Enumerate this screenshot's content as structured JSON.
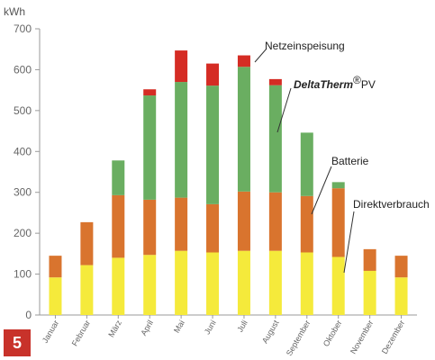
{
  "chart_data": {
    "type": "bar",
    "stacked": true,
    "unit_label": "kWh",
    "categories": [
      "Januar",
      "Februar",
      "März",
      "April",
      "Mai",
      "Juni",
      "Juli",
      "August",
      "September",
      "Oktober",
      "November",
      "Dezember"
    ],
    "series": [
      {
        "name": "Direktverbrauch",
        "color": "#f5ea3b",
        "values": [
          92,
          122,
          140,
          147,
          157,
          153,
          157,
          157,
          153,
          142,
          108,
          92
        ]
      },
      {
        "name": "Batterie",
        "color": "#d9742e",
        "values": [
          53,
          105,
          153,
          135,
          130,
          118,
          145,
          143,
          138,
          168,
          53,
          53
        ]
      },
      {
        "name": "DeltaTherm®PV",
        "color": "#6aae61",
        "values": [
          0,
          0,
          85,
          255,
          283,
          290,
          305,
          262,
          155,
          15,
          0,
          0
        ]
      },
      {
        "name": "Netzeinspeisung",
        "color": "#d52c24",
        "values": [
          0,
          0,
          0,
          15,
          77,
          54,
          28,
          15,
          0,
          0,
          0,
          0
        ]
      }
    ],
    "ylim": [
      0,
      700
    ],
    "yticks": [
      0,
      100,
      200,
      300,
      400,
      500,
      600,
      700
    ],
    "grid": false
  },
  "annotations": {
    "netzeinspeisung": "Netzeinspeisung",
    "deltatherm": "DeltaTherm",
    "deltatherm_sup": "®",
    "deltatherm_suffix": "PV",
    "batterie": "Batterie",
    "direktverbrauch": "Direktverbrauch"
  },
  "figure_number": "5"
}
